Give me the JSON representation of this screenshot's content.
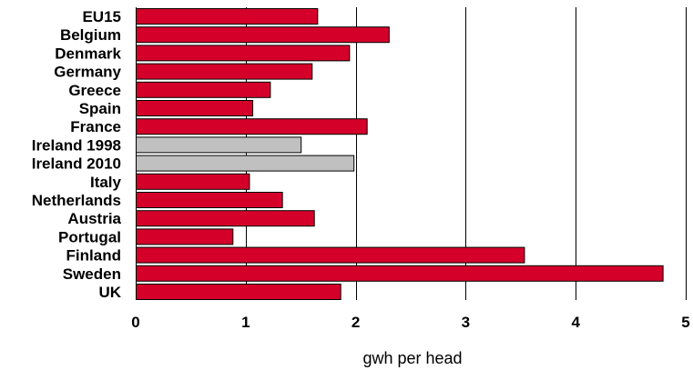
{
  "chart_data": {
    "type": "bar",
    "orientation": "horizontal",
    "categories": [
      "EU15",
      "Belgium",
      "Denmark",
      "Germany",
      "Greece",
      "Spain",
      "France",
      "Ireland 1998",
      "Ireland 2010",
      "Italy",
      "Netherlands",
      "Austria",
      "Portugal",
      "Finland",
      "Sweden",
      "UK"
    ],
    "values": [
      1.65,
      2.3,
      1.94,
      1.6,
      1.22,
      1.06,
      2.1,
      1.5,
      1.98,
      1.03,
      1.33,
      1.62,
      0.88,
      3.53,
      4.79,
      1.86
    ],
    "highlighted": [
      "Ireland 1998",
      "Ireland 2010"
    ],
    "xlabel": "gwh per head",
    "xlim": [
      0,
      5
    ],
    "xticks": [
      "0",
      "1",
      "2",
      "3",
      "4",
      "5"
    ],
    "grid": "vertical",
    "colors": {
      "bar": "#d4002a",
      "highlight": "#c0c0c0",
      "outline": "#000000",
      "grid": "#000000"
    }
  }
}
